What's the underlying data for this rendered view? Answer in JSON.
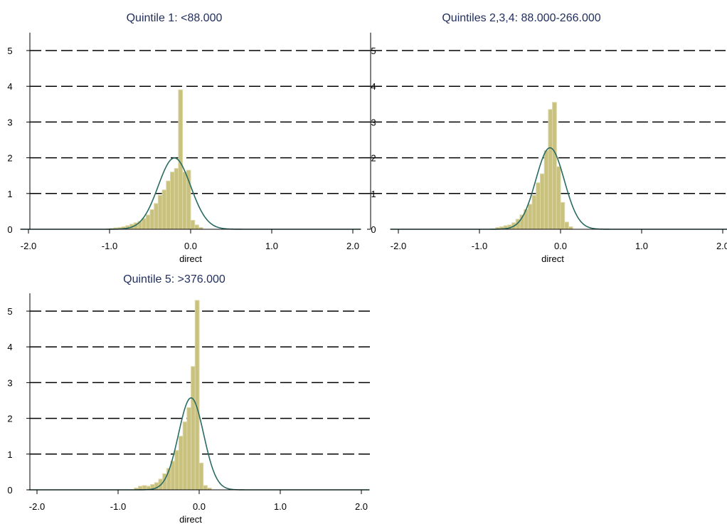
{
  "colors": {
    "bar_fill": "#c9c17e",
    "bar_stroke": "#dcd6a6",
    "curve": "#2a6b62",
    "title": "#1f2d5c",
    "grid": "#000000",
    "axis": "#000000"
  },
  "chart_data": [
    {
      "type": "histogram",
      "title": "Quintile 1: <88.000",
      "xlabel": "direct",
      "ylabel": "",
      "xlim": [
        -2.1,
        2.1
      ],
      "ylim": [
        0,
        5.6
      ],
      "x_ticks": [
        -2.0,
        -1.0,
        0.0,
        1.0,
        2.0
      ],
      "x_tick_labels": [
        "-2.0",
        "-1.0",
        "0.0",
        "1.0",
        "2.0"
      ],
      "y_ticks": [
        0,
        1,
        2,
        3,
        4,
        5
      ],
      "y_tick_labels": [
        "0",
        "1",
        "2",
        "3",
        "4",
        "5"
      ],
      "grid": "horizontal dashed",
      "bin_width": 0.05,
      "bins": [
        {
          "x0": -1.0,
          "height": 0.02
        },
        {
          "x0": -0.95,
          "height": 0.04
        },
        {
          "x0": -0.9,
          "height": 0.05
        },
        {
          "x0": -0.85,
          "height": 0.07
        },
        {
          "x0": -0.8,
          "height": 0.1
        },
        {
          "x0": -0.75,
          "height": 0.14
        },
        {
          "x0": -0.7,
          "height": 0.18
        },
        {
          "x0": -0.65,
          "height": 0.22
        },
        {
          "x0": -0.6,
          "height": 0.3
        },
        {
          "x0": -0.55,
          "height": 0.4
        },
        {
          "x0": -0.5,
          "height": 0.55
        },
        {
          "x0": -0.45,
          "height": 0.72
        },
        {
          "x0": -0.4,
          "height": 0.95
        },
        {
          "x0": -0.35,
          "height": 1.1
        },
        {
          "x0": -0.3,
          "height": 1.35
        },
        {
          "x0": -0.25,
          "height": 1.6
        },
        {
          "x0": -0.2,
          "height": 1.7
        },
        {
          "x0": -0.15,
          "height": 3.9
        },
        {
          "x0": -0.1,
          "height": 1.6
        },
        {
          "x0": -0.05,
          "height": 1.65
        },
        {
          "x0": 0.0,
          "height": 0.25
        },
        {
          "x0": 0.05,
          "height": 0.12
        },
        {
          "x0": 0.1,
          "height": 0.05
        }
      ],
      "density_curve": {
        "mean": -0.2,
        "sd": 0.2
      }
    },
    {
      "type": "histogram",
      "title": "Quintiles 2,3,4: 88.000-266.000",
      "xlabel": "direct",
      "ylabel": "",
      "xlim": [
        -2.1,
        2.1
      ],
      "ylim": [
        0,
        5.6
      ],
      "x_ticks": [
        -2.0,
        -1.0,
        0.0,
        1.0,
        2.0
      ],
      "x_tick_labels": [
        "-2.0",
        "-1.0",
        "0.0",
        "1.0",
        "2.0"
      ],
      "y_ticks": [
        0,
        1,
        2,
        3,
        4,
        5
      ],
      "y_tick_labels": [
        "0",
        "1",
        "2",
        "3",
        "4",
        "5"
      ],
      "grid": "horizontal dashed",
      "bin_width": 0.05,
      "bins": [
        {
          "x0": -0.8,
          "height": 0.05
        },
        {
          "x0": -0.75,
          "height": 0.07
        },
        {
          "x0": -0.7,
          "height": 0.1
        },
        {
          "x0": -0.65,
          "height": 0.12
        },
        {
          "x0": -0.6,
          "height": 0.18
        },
        {
          "x0": -0.55,
          "height": 0.28
        },
        {
          "x0": -0.5,
          "height": 0.4
        },
        {
          "x0": -0.45,
          "height": 0.55
        },
        {
          "x0": -0.4,
          "height": 0.7
        },
        {
          "x0": -0.35,
          "height": 0.95
        },
        {
          "x0": -0.3,
          "height": 1.3
        },
        {
          "x0": -0.25,
          "height": 1.55
        },
        {
          "x0": -0.2,
          "height": 2.2
        },
        {
          "x0": -0.15,
          "height": 3.35
        },
        {
          "x0": -0.1,
          "height": 3.55
        },
        {
          "x0": -0.05,
          "height": 1.75
        },
        {
          "x0": 0.0,
          "height": 0.75
        },
        {
          "x0": 0.05,
          "height": 0.2
        },
        {
          "x0": 0.1,
          "height": 0.07
        }
      ],
      "density_curve": {
        "mean": -0.13,
        "sd": 0.175
      }
    },
    {
      "type": "histogram",
      "title": "Quintile 5: >376.000",
      "xlabel": "direct",
      "ylabel": "",
      "xlim": [
        -2.1,
        2.1
      ],
      "ylim": [
        0,
        5.6
      ],
      "x_ticks": [
        -2.0,
        -1.0,
        0.0,
        1.0,
        2.0
      ],
      "x_tick_labels": [
        "-2.0",
        "-1.0",
        "0.0",
        "1.0",
        "2.0"
      ],
      "y_ticks": [
        0,
        1,
        2,
        3,
        4,
        5
      ],
      "y_tick_labels": [
        "0",
        "1",
        "2",
        "3",
        "4",
        "5"
      ],
      "grid": "horizontal dashed",
      "bin_width": 0.05,
      "bins": [
        {
          "x0": -0.8,
          "height": 0.05
        },
        {
          "x0": -0.75,
          "height": 0.1
        },
        {
          "x0": -0.7,
          "height": 0.12
        },
        {
          "x0": -0.65,
          "height": 0.1
        },
        {
          "x0": -0.6,
          "height": 0.15
        },
        {
          "x0": -0.55,
          "height": 0.2
        },
        {
          "x0": -0.5,
          "height": 0.3
        },
        {
          "x0": -0.45,
          "height": 0.45
        },
        {
          "x0": -0.4,
          "height": 0.6
        },
        {
          "x0": -0.35,
          "height": 0.8
        },
        {
          "x0": -0.3,
          "height": 1.1
        },
        {
          "x0": -0.25,
          "height": 1.5
        },
        {
          "x0": -0.2,
          "height": 1.9
        },
        {
          "x0": -0.15,
          "height": 2.3
        },
        {
          "x0": -0.1,
          "height": 3.45
        },
        {
          "x0": -0.05,
          "height": 5.3
        },
        {
          "x0": 0.0,
          "height": 0.75
        },
        {
          "x0": 0.05,
          "height": 0.12
        },
        {
          "x0": 0.1,
          "height": 0.05
        }
      ],
      "density_curve": {
        "mean": -0.1,
        "sd": 0.155
      }
    }
  ]
}
